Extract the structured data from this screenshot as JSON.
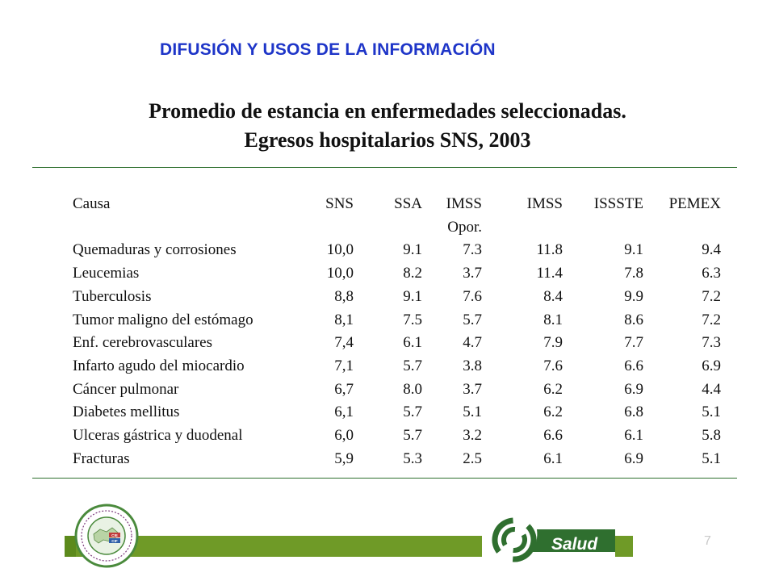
{
  "header": {
    "title": "DIFUSIÓN Y USOS DE LA INFORMACIÓN"
  },
  "title": {
    "line1": "Promedio de estancia en enfermedades seleccionadas.",
    "line2": "Egresos hospitalarios SNS, 2003"
  },
  "table": {
    "headers": [
      "Causa",
      "SNS",
      "SSA",
      "IMSS",
      "IMSS",
      "ISSSTE",
      "PEMEX"
    ],
    "header_sub": [
      "",
      "",
      "",
      "Opor.",
      "",
      "",
      ""
    ],
    "rows": [
      [
        "Quemaduras y corrosiones",
        "10,0",
        "9.1",
        "7.3",
        "11.8",
        "9.1",
        "9.4"
      ],
      [
        "Leucemias",
        "10,0",
        "8.2",
        "3.7",
        "11.4",
        "7.8",
        "6.3"
      ],
      [
        "Tuberculosis",
        "8,8",
        "9.1",
        "7.6",
        "8.4",
        "9.9",
        "7.2"
      ],
      [
        "Tumor maligno del estómago",
        "8,1",
        "7.5",
        "5.7",
        "8.1",
        "8.6",
        "7.2"
      ],
      [
        "Enf. cerebrovasculares",
        "7,4",
        "6.1",
        "4.7",
        "7.9",
        "7.7",
        "7.3"
      ],
      [
        "Infarto agudo del miocardio",
        "7,1",
        "5.7",
        "3.8",
        "7.6",
        "6.6",
        "6.9"
      ],
      [
        "Cáncer pulmonar",
        "6,7",
        "8.0",
        "3.7",
        "6.2",
        "6.9",
        "4.4"
      ],
      [
        "Diabetes mellitus",
        "6,1",
        "5.7",
        "5.1",
        "6.2",
        "6.8",
        "5.1"
      ],
      [
        "Ulceras gástrica y duodenal",
        "6,0",
        "5.7",
        "3.2",
        "6.6",
        "6.1",
        "5.8"
      ],
      [
        "Fracturas",
        "5,9",
        "5.3",
        "2.5",
        "6.1",
        "6.9",
        "5.1"
      ]
    ]
  },
  "footer": {
    "brand_label": "Salud",
    "page_number": "7",
    "seal_code_1": "CIE",
    "seal_code_2": "CIF",
    "seal_icon": "institutional-seal-icon",
    "logo_icon": "salud-swirl-icon"
  },
  "colors": {
    "header_blue": "#1e35c8",
    "footer_green": "#6f9a27",
    "rule_green": "#2f6f2f"
  }
}
